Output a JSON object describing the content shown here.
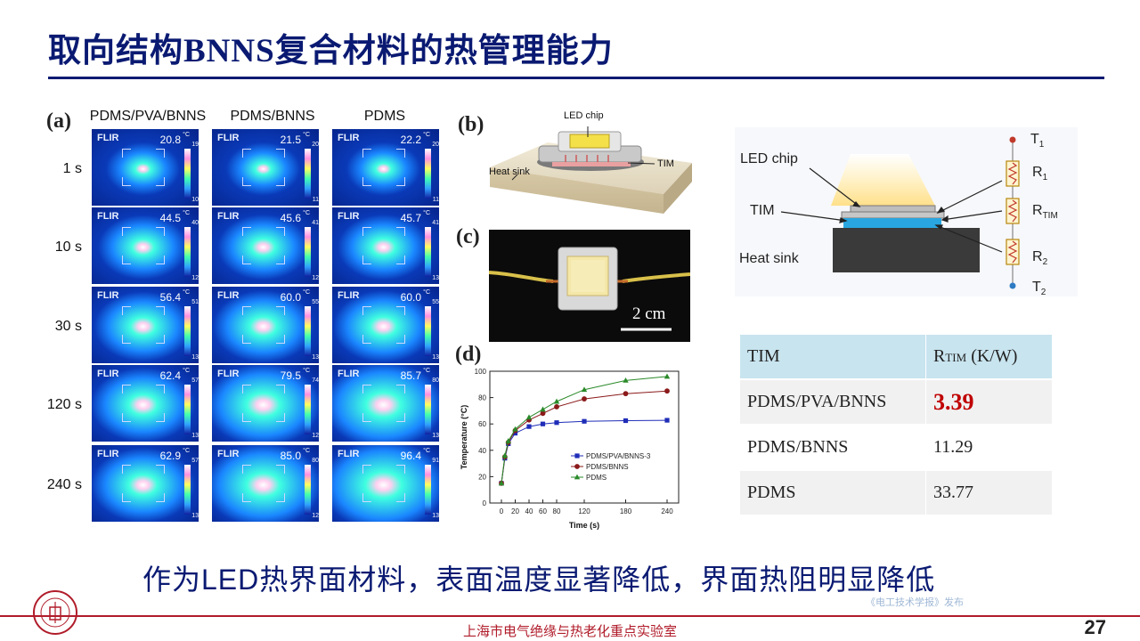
{
  "slide": {
    "title": "取向结构BNNS复合材料的热管理能力",
    "subtitle": "作为LED热界面材料，表面温度显著降低，界面热阻明显降低",
    "footer": "上海市电气绝缘与热老化重点实验室",
    "page_number": "27",
    "watermark": "《电工技术学报》发布"
  },
  "panel_a": {
    "letter": "(a)",
    "columns": [
      "PDMS/PVA/BNNS",
      "PDMS/BNNS",
      "PDMS"
    ],
    "rows": [
      {
        "label": "1 s",
        "cells": [
          {
            "temp": "20.8",
            "max": "19",
            "min": "10"
          },
          {
            "temp": "21.5",
            "max": "20",
            "min": "11"
          },
          {
            "temp": "22.2",
            "max": "20",
            "min": "11"
          }
        ]
      },
      {
        "label": "10 s",
        "cells": [
          {
            "temp": "44.5",
            "max": "40",
            "min": "12"
          },
          {
            "temp": "45.6",
            "max": "41",
            "min": "12"
          },
          {
            "temp": "45.7",
            "max": "41",
            "min": "13"
          }
        ]
      },
      {
        "label": "30 s",
        "cells": [
          {
            "temp": "56.4",
            "max": "51",
            "min": "13"
          },
          {
            "temp": "60.0",
            "max": "55",
            "min": "13"
          },
          {
            "temp": "60.0",
            "max": "55",
            "min": "13"
          }
        ]
      },
      {
        "label": "120 s",
        "cells": [
          {
            "temp": "62.4",
            "max": "57",
            "min": "13"
          },
          {
            "temp": "79.5",
            "max": "74",
            "min": "12"
          },
          {
            "temp": "85.7",
            "max": "80",
            "min": "13"
          }
        ]
      },
      {
        "label": "240 s",
        "cells": [
          {
            "temp": "62.9",
            "max": "57",
            "min": "13"
          },
          {
            "temp": "85.0",
            "max": "80",
            "min": "12"
          },
          {
            "temp": "96.4",
            "max": "91",
            "min": "13"
          }
        ]
      }
    ],
    "brand": "FLIR",
    "unit": "°C"
  },
  "panel_b": {
    "letter": "(b)",
    "labels": {
      "chip": "LED chip",
      "tim": "TIM",
      "sink": "Heat sink"
    }
  },
  "panel_c": {
    "letter": "(c)",
    "scale": "2 cm"
  },
  "panel_d": {
    "letter": "(d)"
  },
  "schematic": {
    "labels": {
      "chip": "LED chip",
      "tim": "TIM",
      "sink": "Heat sink"
    },
    "t1": "T",
    "t1_sub": "1",
    "r1": "R",
    "r1_sub": "1",
    "rtim": "R",
    "rtim_sub": "TIM",
    "r2": "R",
    "r2_sub": "2",
    "t2": "T",
    "t2_sub": "2"
  },
  "table": {
    "headers": [
      "TIM",
      "R",
      "TIM",
      " (K/W)"
    ],
    "rows": [
      {
        "name": "PDMS/PVA/BNNS",
        "value": "3.39",
        "highlight": true
      },
      {
        "name": "PDMS/BNNS",
        "value": "11.29"
      },
      {
        "name": "PDMS",
        "value": "33.77"
      }
    ],
    "highlight_color": "#c00000"
  },
  "chart_data": {
    "type": "line",
    "xlabel": "Time (s)",
    "ylabel": "Temperature (°C)",
    "xticks": [
      0,
      20,
      40,
      60,
      80,
      120,
      180,
      240
    ],
    "yticks": [
      0,
      20,
      40,
      60,
      80,
      100
    ],
    "ylim": [
      0,
      100
    ],
    "grid": false,
    "legend_position": "bottom-right",
    "series": [
      {
        "name": "PDMS/PVA/BNNS-3",
        "color": "#1f2db8",
        "marker": "square",
        "points": [
          [
            0,
            15
          ],
          [
            5,
            34
          ],
          [
            10,
            45
          ],
          [
            20,
            53
          ],
          [
            40,
            58
          ],
          [
            60,
            60
          ],
          [
            80,
            61
          ],
          [
            120,
            62
          ],
          [
            180,
            62.5
          ],
          [
            240,
            62.8
          ]
        ]
      },
      {
        "name": "PDMS/BNNS",
        "color": "#8b1a1a",
        "marker": "circle",
        "points": [
          [
            0,
            15
          ],
          [
            5,
            35
          ],
          [
            10,
            46
          ],
          [
            20,
            55
          ],
          [
            40,
            63
          ],
          [
            60,
            68
          ],
          [
            80,
            73
          ],
          [
            120,
            79
          ],
          [
            180,
            83
          ],
          [
            240,
            85
          ]
        ]
      },
      {
        "name": "PDMS",
        "color": "#2a8a2a",
        "marker": "triangle",
        "points": [
          [
            0,
            15
          ],
          [
            5,
            36
          ],
          [
            10,
            47
          ],
          [
            20,
            56
          ],
          [
            40,
            65
          ],
          [
            60,
            71
          ],
          [
            80,
            77
          ],
          [
            120,
            86
          ],
          [
            180,
            93
          ],
          [
            240,
            96
          ]
        ]
      }
    ]
  }
}
